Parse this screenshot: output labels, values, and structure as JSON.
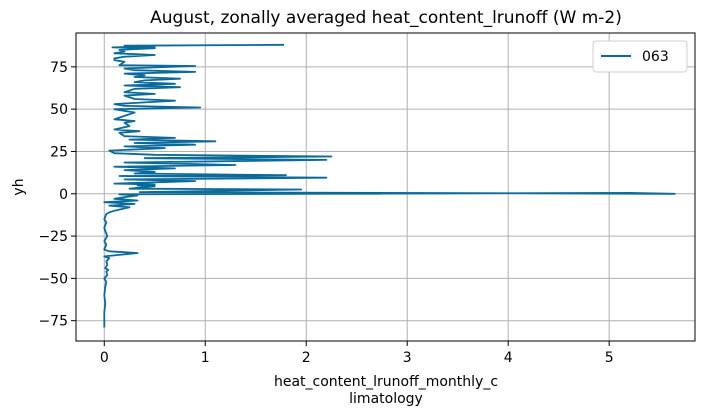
{
  "chart_data": {
    "type": "line",
    "title": "August, zonally averaged heat_content_lrunoff (W m-2)",
    "xlabel_lines": [
      "heat_content_lrunoff_monthly_c",
      "limatology"
    ],
    "ylabel": "yh",
    "xlim": [
      -0.28,
      5.85
    ],
    "ylim": [
      -87,
      95
    ],
    "xticks": [
      0,
      1,
      2,
      3,
      4,
      5
    ],
    "xtick_labels": [
      "0",
      "1",
      "2",
      "3",
      "4",
      "5"
    ],
    "yticks": [
      -75,
      -50,
      -25,
      0,
      25,
      50,
      75
    ],
    "ytick_labels": [
      "−75",
      "−50",
      "−25",
      "0",
      "25",
      "50",
      "75"
    ],
    "grid": true,
    "legend_position": "top-right",
    "line_color": "#0a6a9c",
    "series": [
      {
        "name": "063",
        "points": [
          [
            0.0,
            -79
          ],
          [
            0.0,
            -75
          ],
          [
            0.0,
            -70
          ],
          [
            0.01,
            -65
          ],
          [
            0.0,
            -60
          ],
          [
            0.01,
            -55
          ],
          [
            0.02,
            -52
          ],
          [
            0.0,
            -50
          ],
          [
            0.03,
            -48
          ],
          [
            0.02,
            -46
          ],
          [
            0.04,
            -45
          ],
          [
            0.01,
            -44
          ],
          [
            0.03,
            -42
          ],
          [
            0.02,
            -40
          ],
          [
            0.05,
            -38
          ],
          [
            0.0,
            -37
          ],
          [
            0.33,
            -35
          ],
          [
            0.05,
            -34
          ],
          [
            0.0,
            -33
          ],
          [
            0.02,
            -30
          ],
          [
            0.0,
            -28
          ],
          [
            0.03,
            -25
          ],
          [
            0.01,
            -22
          ],
          [
            0.0,
            -20
          ],
          [
            0.02,
            -17
          ],
          [
            0.0,
            -15
          ],
          [
            0.02,
            -12
          ],
          [
            0.05,
            -11
          ],
          [
            0.1,
            -10
          ],
          [
            0.25,
            -8
          ],
          [
            0.05,
            -7
          ],
          [
            0.3,
            -6
          ],
          [
            0.0,
            -5
          ],
          [
            0.33,
            -4
          ],
          [
            0.1,
            -3
          ],
          [
            0.2,
            -2
          ],
          [
            0.33,
            -1
          ],
          [
            0.15,
            -0.3
          ],
          [
            5.2,
            0.5
          ],
          [
            5.65,
            0.0
          ],
          [
            0.35,
            1.0
          ],
          [
            1.95,
            2.5
          ],
          [
            0.25,
            3.0
          ],
          [
            0.5,
            4.5
          ],
          [
            0.33,
            5.0
          ],
          [
            0.5,
            5.5
          ],
          [
            0.1,
            6.0
          ],
          [
            0.9,
            7.5
          ],
          [
            0.2,
            8.5
          ],
          [
            2.2,
            9.5
          ],
          [
            0.15,
            10.5
          ],
          [
            1.8,
            11.0
          ],
          [
            0.3,
            12.0
          ],
          [
            0.5,
            13.0
          ],
          [
            0.2,
            14.0
          ],
          [
            0.7,
            15.0
          ],
          [
            0.1,
            16.0
          ],
          [
            1.3,
            17.0
          ],
          [
            0.2,
            18.5
          ],
          [
            2.2,
            20.0
          ],
          [
            0.4,
            21.0
          ],
          [
            2.25,
            22.0
          ],
          [
            0.5,
            23.0
          ],
          [
            0.1,
            24.0
          ],
          [
            0.05,
            25.5
          ],
          [
            0.6,
            27.0
          ],
          [
            0.2,
            28.0
          ],
          [
            0.9,
            29.0
          ],
          [
            0.3,
            30.0
          ],
          [
            1.1,
            31.0
          ],
          [
            0.25,
            32.0
          ],
          [
            0.7,
            33.0
          ],
          [
            0.2,
            34.0
          ],
          [
            0.15,
            36.0
          ],
          [
            0.35,
            37.0
          ],
          [
            0.1,
            38.0
          ],
          [
            0.25,
            40.0
          ],
          [
            0.2,
            42.0
          ],
          [
            0.3,
            43.0
          ],
          [
            0.1,
            44.0
          ],
          [
            0.2,
            46.0
          ],
          [
            0.3,
            48.0
          ],
          [
            0.1,
            50.0
          ],
          [
            0.95,
            51.0
          ],
          [
            0.2,
            52.0
          ],
          [
            0.1,
            53.0
          ],
          [
            0.4,
            54.0
          ],
          [
            0.7,
            55.0
          ],
          [
            0.3,
            56.0
          ],
          [
            0.2,
            58.0
          ],
          [
            0.5,
            59.0
          ],
          [
            0.2,
            60.0
          ],
          [
            0.3,
            62.0
          ],
          [
            0.75,
            63.0
          ],
          [
            0.2,
            64.0
          ],
          [
            0.7,
            65.0
          ],
          [
            0.3,
            66.0
          ],
          [
            0.4,
            67.0
          ],
          [
            0.75,
            68.0
          ],
          [
            0.3,
            69.0
          ],
          [
            0.4,
            70.0
          ],
          [
            0.2,
            71.0
          ],
          [
            0.9,
            72.0
          ],
          [
            0.3,
            73.0
          ],
          [
            0.2,
            74.0
          ],
          [
            0.9,
            75.5
          ],
          [
            0.15,
            76.0
          ],
          [
            0.2,
            78.0
          ],
          [
            0.1,
            79.0
          ],
          [
            0.1,
            80.0
          ],
          [
            0.2,
            81.0
          ],
          [
            0.5,
            82.0
          ],
          [
            0.1,
            83.0
          ],
          [
            0.2,
            84.0
          ],
          [
            0.15,
            85.0
          ],
          [
            0.5,
            86.0
          ],
          [
            0.08,
            86.5
          ],
          [
            0.5,
            87.0
          ],
          [
            0.2,
            87.5
          ],
          [
            1.78,
            88.0
          ]
        ]
      }
    ]
  }
}
